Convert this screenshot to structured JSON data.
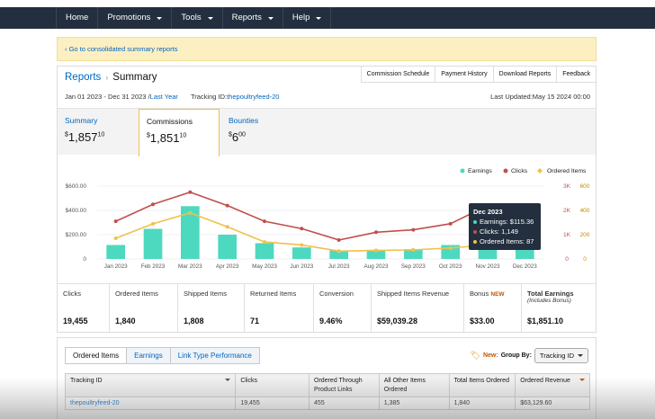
{
  "nav": {
    "items": [
      {
        "label": "Home",
        "dropdown": false
      },
      {
        "label": "Promotions",
        "dropdown": true
      },
      {
        "label": "Tools",
        "dropdown": true
      },
      {
        "label": "Reports",
        "dropdown": true
      },
      {
        "label": "Help",
        "dropdown": true
      }
    ]
  },
  "banner": {
    "text": "‹ Go to consolidated summary reports"
  },
  "header": {
    "crumb_root": "Reports",
    "crumb_sep": "›",
    "crumb_current": "Summary",
    "links": [
      "Commission Schedule",
      "Payment History",
      "Download Reports",
      "Feedback"
    ],
    "date_range": "Jan 01 2023 - Dec 31 2023 /",
    "last_year": "Last Year",
    "tracking_label": "Tracking ID:",
    "tracking_id": "thepoultryfeed-20",
    "last_updated": "Last Updated:May 15 2024 00:00"
  },
  "stat_tabs": [
    {
      "label": "Summary",
      "dollar": "$",
      "whole": "1,857",
      "cents": "10"
    },
    {
      "label": "Commissions",
      "dollar": "$",
      "whole": "1,851",
      "cents": "10"
    },
    {
      "label": "Bounties",
      "dollar": "$",
      "whole": "6",
      "cents": "00"
    }
  ],
  "legend": {
    "earnings": "Earnings",
    "clicks": "Clicks",
    "ordered": "Ordered Items"
  },
  "colors": {
    "earnings": "#4dd9c0",
    "clicks": "#c0504d",
    "ordered": "#f0c14b",
    "nav": "#232f3e",
    "link": "#0066c0"
  },
  "chart_data": {
    "type": "bar",
    "categories": [
      "Jan 2023",
      "Feb 2023",
      "Mar 2023",
      "Apr 2023",
      "May 2023",
      "Jun 2023",
      "Jul 2023",
      "Aug 2023",
      "Sep 2023",
      "Oct 2023",
      "Nov 2023",
      "Dec 2023"
    ],
    "series": [
      {
        "name": "Earnings",
        "type": "bar",
        "axis": "left",
        "values": [
          115,
          248,
          435,
          200,
          130,
          95,
          70,
          75,
          80,
          115,
          125,
          115.36
        ]
      },
      {
        "name": "Clicks",
        "type": "line",
        "axis": "right-outer",
        "values": [
          1550,
          2250,
          2750,
          2200,
          1550,
          1250,
          780,
          1100,
          1200,
          1450,
          2200,
          1149
        ]
      },
      {
        "name": "Ordered Items",
        "type": "line",
        "axis": "right-inner",
        "values": [
          170,
          290,
          380,
          265,
          140,
          115,
          65,
          70,
          75,
          90,
          115,
          87
        ]
      }
    ],
    "y_left_ticks": [
      "$600.00",
      "$400.00",
      "$200.00",
      "0"
    ],
    "y_right_outer_ticks": [
      "3K",
      "2K",
      "1K",
      "0"
    ],
    "y_right_inner_ticks": [
      "600",
      "400",
      "200",
      "0"
    ],
    "ylim_left": [
      0,
      600
    ],
    "ylim_right_outer": [
      0,
      3000
    ],
    "ylim_right_inner": [
      0,
      600
    ],
    "legend_position": "top-right",
    "tooltip": {
      "title": "Dec 2023",
      "earnings": "Earnings: $115.36",
      "clicks": "Clicks: 1,149",
      "ordered": "Ordered Items: 87"
    }
  },
  "metrics": [
    {
      "label": "Clicks",
      "value": "19,455"
    },
    {
      "label": "Ordered Items",
      "value": "1,840"
    },
    {
      "label": "Shipped Items",
      "value": "1,808"
    },
    {
      "label": "Returned Items",
      "value": "71"
    },
    {
      "label": "Conversion",
      "value": "9.46%"
    },
    {
      "label": "Shipped Items Revenue",
      "value": "$59,039.28"
    },
    {
      "label": "Bonus",
      "badge": "NEW",
      "value": "$33.00"
    },
    {
      "label": "Total Earnings",
      "sublabel": "(Includes Bonus)",
      "value": "$1,851.10"
    }
  ],
  "bottom": {
    "tabs": [
      "Ordered Items",
      "Earnings",
      "Link Type Performance"
    ],
    "new_label": "New:",
    "group_by_label": "Group By:",
    "group_by_value": "Tracking ID",
    "columns": [
      "Tracking ID",
      "Clicks",
      "Ordered Through Product Links",
      "All Other Items Ordered",
      "Total Items Ordered",
      "Ordered Revenue"
    ],
    "rows": [
      [
        "thepoultryfeed-20",
        "19,455",
        "455",
        "1,385",
        "1,840",
        "$63,129.60"
      ]
    ]
  }
}
